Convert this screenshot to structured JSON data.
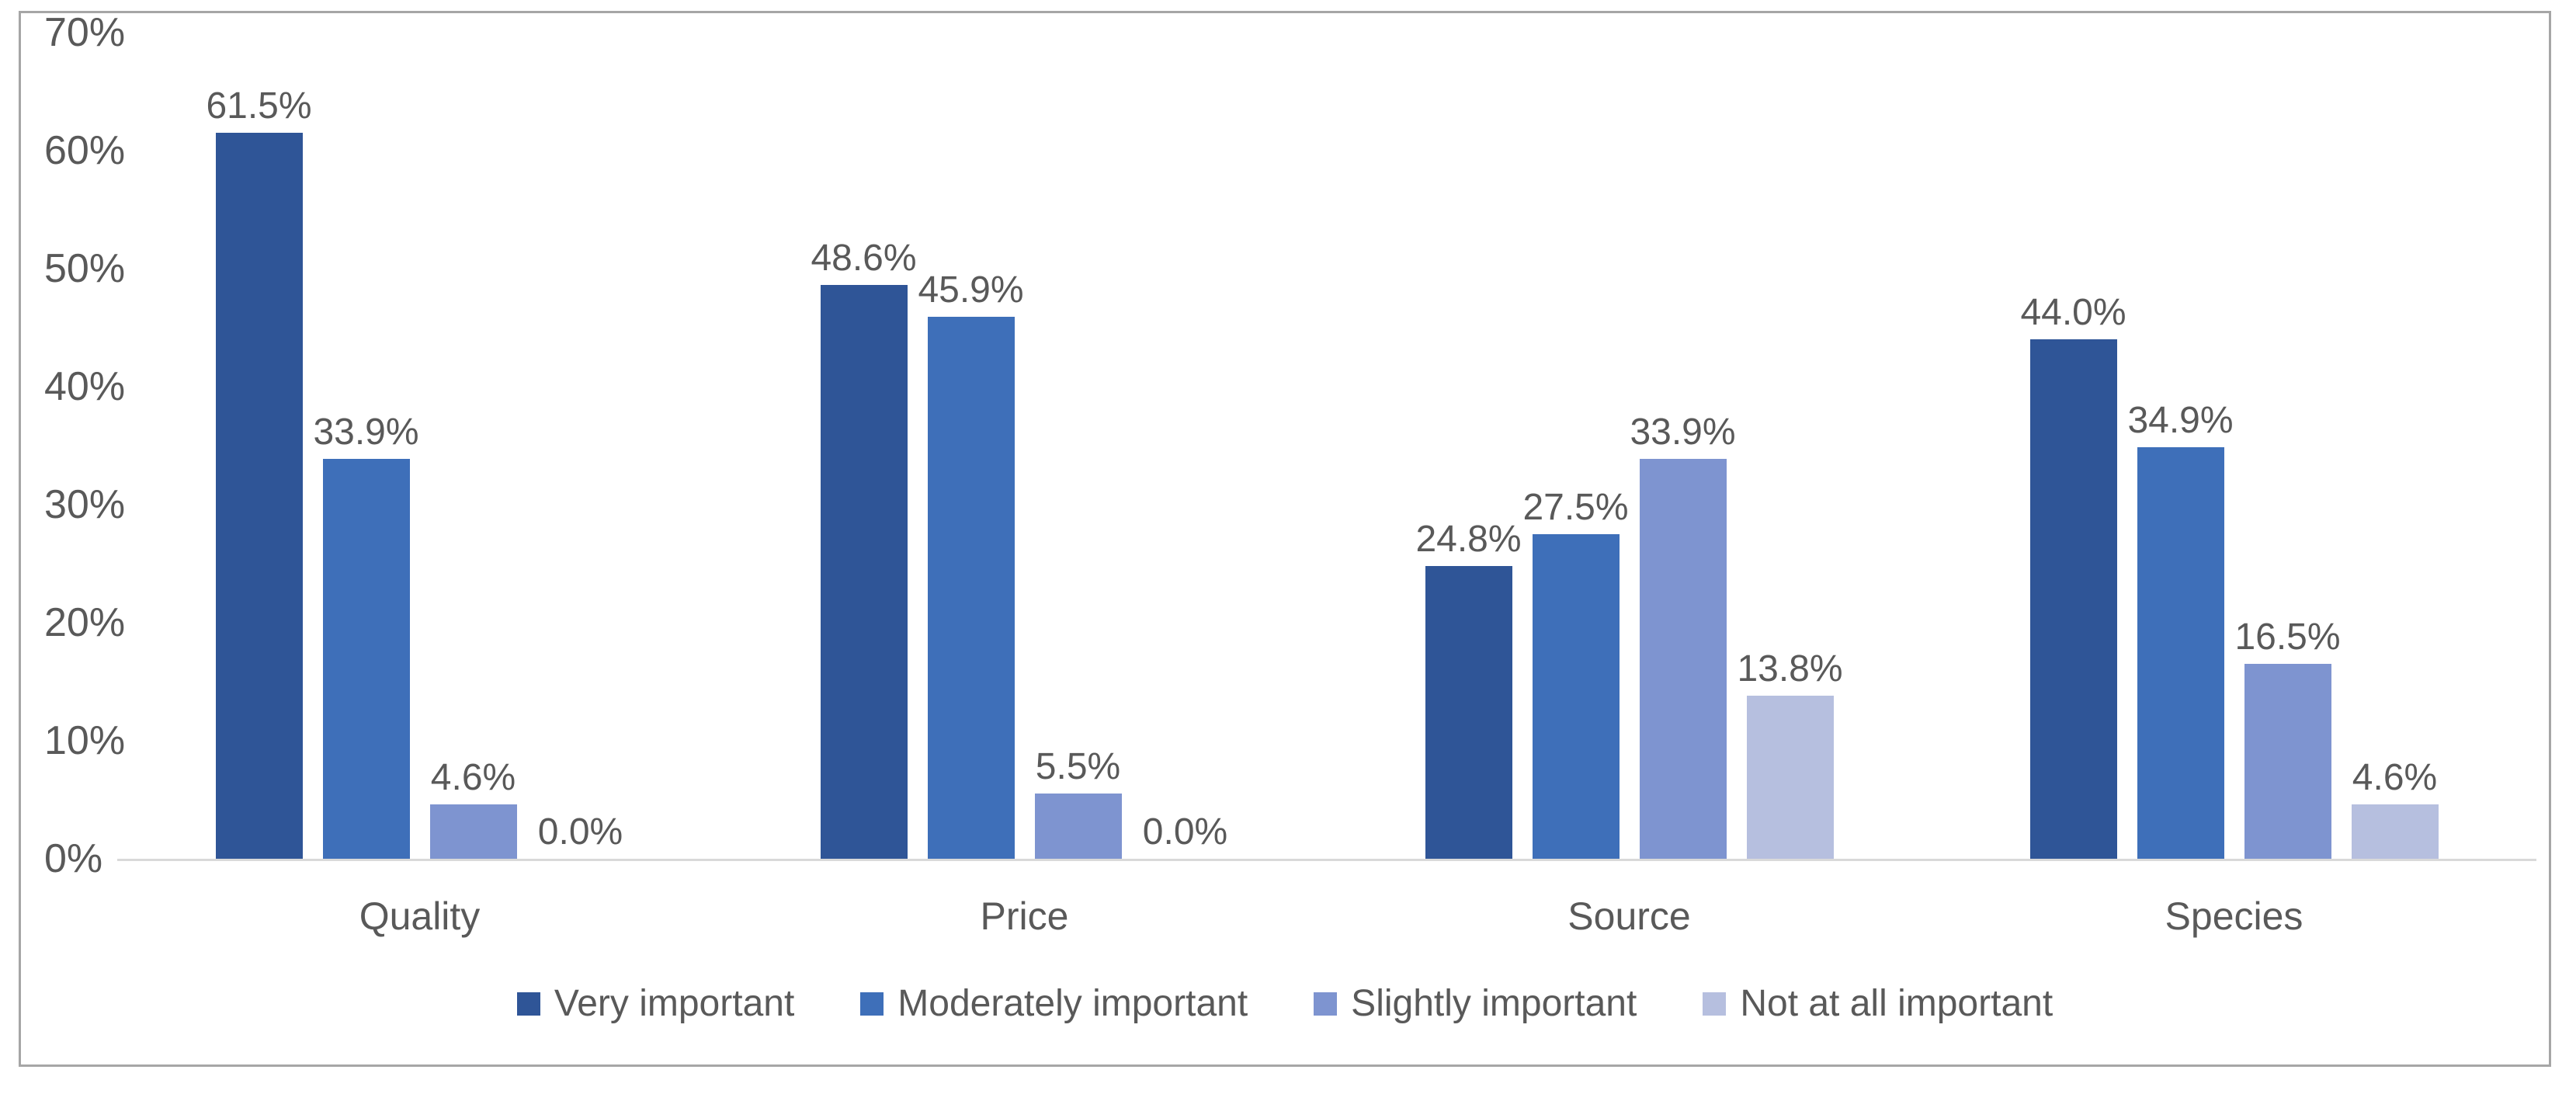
{
  "chart_data": {
    "type": "bar",
    "title": "",
    "categories": [
      "Quality",
      "Price",
      "Source",
      "Species"
    ],
    "series": [
      {
        "name": "Very important",
        "color": "#2F5597",
        "values": [
          61.5,
          48.6,
          24.8,
          44.0
        ],
        "labels": [
          "61.5%",
          "48.6%",
          "24.8%",
          "44.0%"
        ]
      },
      {
        "name": "Moderately important",
        "color": "#3E6FB9",
        "values": [
          33.9,
          45.9,
          27.5,
          34.9
        ],
        "labels": [
          "33.9%",
          "45.9%",
          "27.5%",
          "34.9%"
        ]
      },
      {
        "name": "Slightly important",
        "color": "#7E94D0",
        "values": [
          4.6,
          5.5,
          33.9,
          16.5
        ],
        "labels": [
          "4.6%",
          "5.5%",
          "33.9%",
          "16.5%"
        ]
      },
      {
        "name": "Not at all important",
        "color": "#B6BFDF",
        "values": [
          0.0,
          0.0,
          13.8,
          4.6
        ],
        "labels": [
          "0.0%",
          "0.0%",
          "13.8%",
          "4.6%"
        ]
      }
    ],
    "y_axis": {
      "ticks": [
        "70%",
        "60%",
        "50%",
        "40%",
        "30%",
        "20%",
        "10%",
        "0%"
      ],
      "min": 0,
      "max": 70
    },
    "grid": false,
    "legend_position": "bottom",
    "colors": {
      "text": "#595959",
      "axis_line": "#D9D9D9",
      "frame_border": "#A6A6A6",
      "background": "#FFFFFF"
    }
  }
}
